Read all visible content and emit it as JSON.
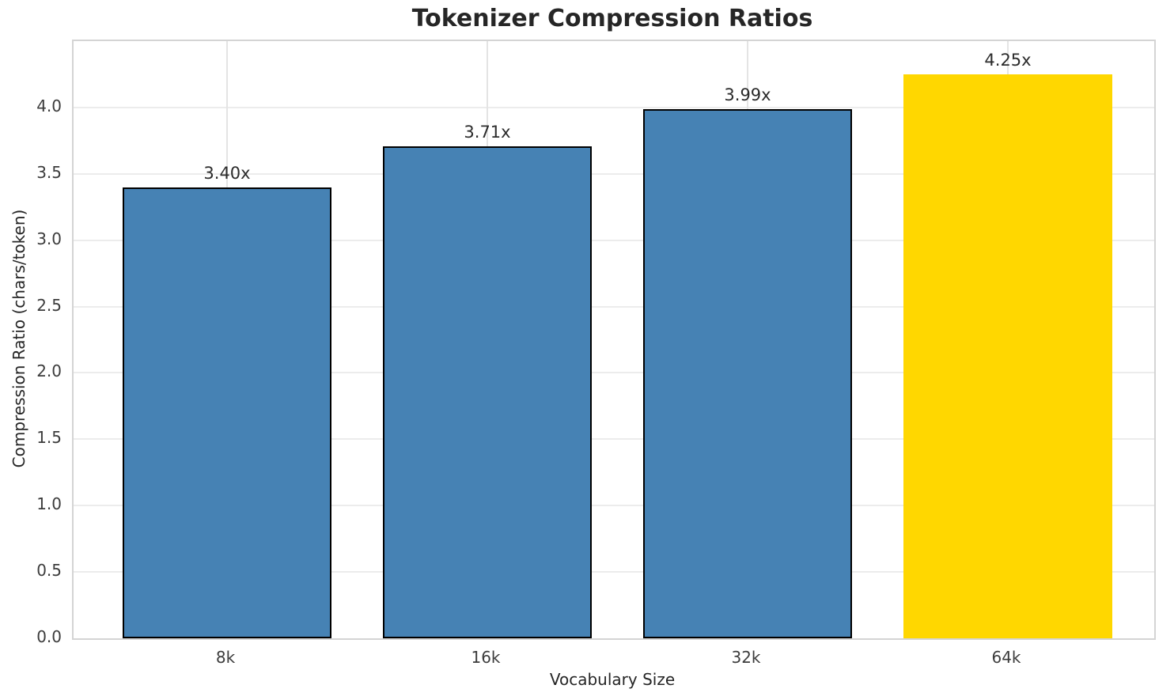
{
  "chart_data": {
    "type": "bar",
    "title": "Tokenizer Compression Ratios",
    "xlabel": "Vocabulary Size",
    "ylabel": "Compression Ratio (chars/token)",
    "categories": [
      "8k",
      "16k",
      "32k",
      "64k"
    ],
    "values": [
      3.4,
      3.71,
      3.99,
      4.25
    ],
    "bar_labels": [
      "3.40x",
      "3.71x",
      "3.99x",
      "4.25x"
    ],
    "bar_colors": [
      "#4682B4",
      "#4682B4",
      "#4682B4",
      "#FFD700"
    ],
    "bar_edge_colors": [
      "#000000",
      "#000000",
      "#000000",
      "none"
    ],
    "ylim": [
      0,
      4.5
    ],
    "ytick_step": 0.5,
    "ytick_labels": [
      "0.0",
      "0.5",
      "1.0",
      "1.5",
      "2.0",
      "2.5",
      "3.0",
      "3.5",
      "4.0"
    ],
    "grid": true,
    "legend": false,
    "plot_background": "#ffffff",
    "grid_color": "#ececec",
    "spine_color": "#d4d4d4",
    "title_color": "#262626",
    "tick_color": "#3c3c3c"
  }
}
